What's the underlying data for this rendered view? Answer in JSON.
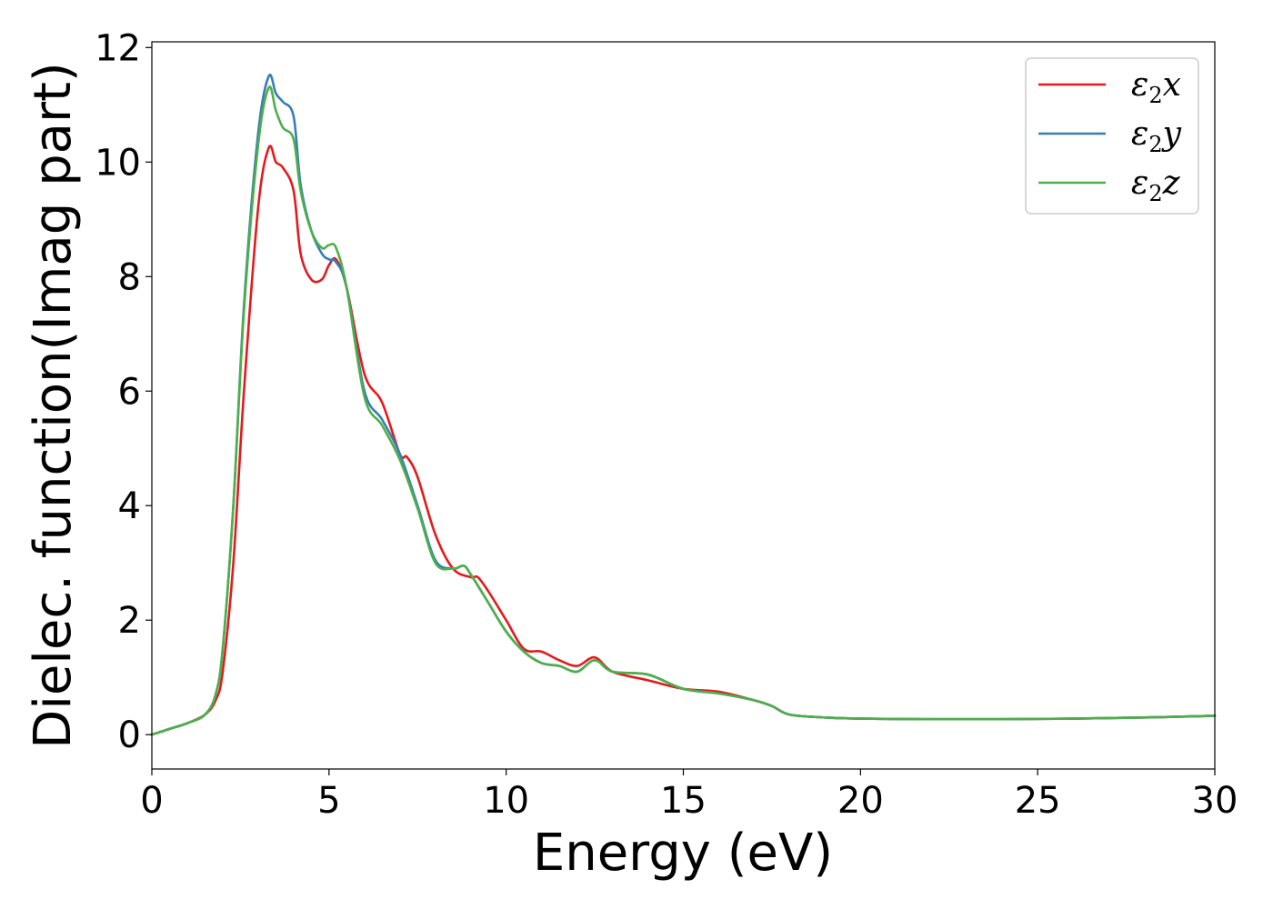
{
  "chart_data": {
    "type": "line",
    "title": "",
    "xlabel": "Energy (eV)",
    "ylabel": "Dielec. function(Imag part)",
    "xlim": [
      0,
      30
    ],
    "ylim": [
      -0.6,
      12.1
    ],
    "xticks": [
      0,
      5,
      10,
      15,
      20,
      25,
      30
    ],
    "yticks": [
      0,
      2,
      4,
      6,
      8,
      10,
      12
    ],
    "grid": false,
    "legend_position": "top-right",
    "series": [
      {
        "name": "ε2x",
        "legend_base": "ε",
        "legend_sub": "2",
        "legend_var": "x",
        "color": "#e41a1c",
        "x": [
          0,
          0.5,
          1.0,
          1.5,
          1.8,
          2.0,
          2.3,
          2.6,
          3.0,
          3.3,
          3.5,
          3.7,
          4.0,
          4.2,
          4.5,
          4.8,
          5.0,
          5.2,
          5.5,
          6.0,
          6.5,
          7.0,
          7.2,
          7.5,
          8.0,
          8.5,
          9.0,
          9.2,
          9.5,
          10.0,
          10.5,
          11.0,
          11.5,
          12.0,
          12.5,
          13.0,
          14.0,
          15.0,
          16.0,
          17.0,
          17.5,
          18.0,
          19.0,
          20.0,
          22.0,
          24.0,
          26.0,
          28.0,
          30.0
        ],
        "y": [
          0,
          0.1,
          0.2,
          0.35,
          0.6,
          1.1,
          3.0,
          6.0,
          9.2,
          10.25,
          10.0,
          9.9,
          9.5,
          8.4,
          7.95,
          7.95,
          8.2,
          8.3,
          7.8,
          6.3,
          5.8,
          4.9,
          4.85,
          4.5,
          3.5,
          2.9,
          2.75,
          2.75,
          2.5,
          2.0,
          1.5,
          1.45,
          1.3,
          1.2,
          1.35,
          1.1,
          0.95,
          0.8,
          0.75,
          0.6,
          0.5,
          0.35,
          0.3,
          0.28,
          0.27,
          0.27,
          0.28,
          0.3,
          0.33
        ]
      },
      {
        "name": "ε2y",
        "legend_base": "ε",
        "legend_sub": "2",
        "legend_var": "y",
        "color": "#377eb8",
        "x": [
          0,
          0.5,
          1.0,
          1.5,
          1.8,
          2.0,
          2.3,
          2.6,
          3.0,
          3.3,
          3.5,
          3.7,
          4.0,
          4.2,
          4.5,
          4.8,
          5.0,
          5.2,
          5.5,
          6.0,
          6.5,
          7.0,
          7.5,
          8.0,
          8.5,
          8.8,
          9.0,
          9.5,
          10.0,
          10.5,
          11.0,
          11.5,
          12.0,
          12.5,
          13.0,
          14.0,
          15.0,
          16.0,
          17.0,
          17.5,
          18.0,
          19.0,
          20.0,
          22.0,
          24.0,
          26.0,
          28.0,
          30.0
        ],
        "y": [
          0,
          0.1,
          0.2,
          0.35,
          0.7,
          1.5,
          4.0,
          7.5,
          10.5,
          11.5,
          11.2,
          11.05,
          10.8,
          9.6,
          8.8,
          8.4,
          8.3,
          8.25,
          7.8,
          6.0,
          5.5,
          4.9,
          4.0,
          3.05,
          2.9,
          2.95,
          2.8,
          2.3,
          1.8,
          1.45,
          1.25,
          1.2,
          1.1,
          1.3,
          1.1,
          1.05,
          0.8,
          0.72,
          0.6,
          0.5,
          0.35,
          0.3,
          0.28,
          0.27,
          0.27,
          0.28,
          0.3,
          0.33
        ]
      },
      {
        "name": "ε2z",
        "legend_base": "ε",
        "legend_sub": "2",
        "legend_var": "z",
        "color": "#4daf4a",
        "x": [
          0,
          0.5,
          1.0,
          1.5,
          1.8,
          2.0,
          2.3,
          2.6,
          3.0,
          3.3,
          3.5,
          3.7,
          4.0,
          4.2,
          4.5,
          4.8,
          5.0,
          5.2,
          5.5,
          6.0,
          6.5,
          7.0,
          7.5,
          8.0,
          8.5,
          8.8,
          9.0,
          9.5,
          10.0,
          10.5,
          11.0,
          11.5,
          12.0,
          12.5,
          13.0,
          14.0,
          15.0,
          16.0,
          17.0,
          17.5,
          18.0,
          19.0,
          20.0,
          22.0,
          24.0,
          26.0,
          28.0,
          30.0
        ],
        "y": [
          0,
          0.1,
          0.2,
          0.35,
          0.7,
          1.5,
          4.0,
          7.4,
          10.3,
          11.3,
          10.9,
          10.6,
          10.4,
          9.5,
          8.8,
          8.5,
          8.55,
          8.5,
          7.8,
          5.9,
          5.4,
          4.8,
          3.95,
          3.0,
          2.9,
          2.95,
          2.8,
          2.3,
          1.8,
          1.45,
          1.25,
          1.2,
          1.1,
          1.3,
          1.1,
          1.05,
          0.8,
          0.72,
          0.6,
          0.5,
          0.35,
          0.3,
          0.28,
          0.27,
          0.27,
          0.28,
          0.3,
          0.33
        ]
      }
    ]
  }
}
